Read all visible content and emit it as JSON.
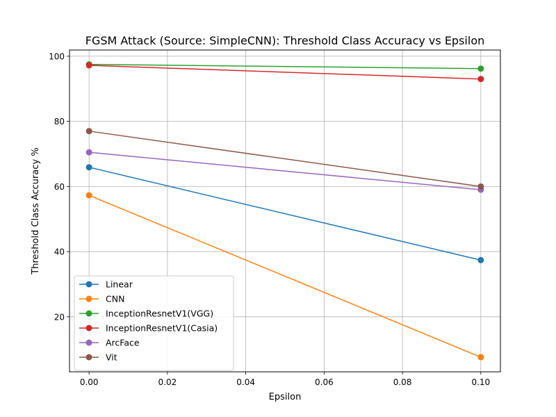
{
  "chart_data": {
    "type": "line",
    "title": "FGSM Attack (Source: SimpleCNN): Threshold Class Accuracy vs Epsilon",
    "xlabel": "Epsilon",
    "ylabel": "Threshold Class Accuracy %",
    "xlim": [
      -0.005,
      0.105
    ],
    "ylim": [
      3.1,
      101.9
    ],
    "x": [
      0.0,
      0.1
    ],
    "xticks": [
      0.0,
      0.02,
      0.04,
      0.06,
      0.08,
      0.1
    ],
    "xtick_labels": [
      "0.00",
      "0.02",
      "0.04",
      "0.06",
      "0.08",
      "0.10"
    ],
    "yticks": [
      20,
      40,
      60,
      80,
      100
    ],
    "ytick_labels": [
      "20",
      "40",
      "60",
      "80",
      "100"
    ],
    "grid": true,
    "legend_position": "lower-left",
    "series": [
      {
        "name": "Linear",
        "color": "#1f77b4",
        "values": [
          65.9,
          37.4
        ]
      },
      {
        "name": "CNN",
        "color": "#ff7f0e",
        "values": [
          57.3,
          7.6
        ]
      },
      {
        "name": "InceptionResnetV1(VGG)",
        "color": "#2ca02c",
        "values": [
          97.5,
          96.2
        ]
      },
      {
        "name": "InceptionResnetV1(Casia)",
        "color": "#d62728",
        "values": [
          97.2,
          93.0
        ]
      },
      {
        "name": "ArcFace",
        "color": "#9467bd",
        "values": [
          70.5,
          59.0
        ]
      },
      {
        "name": "Vit",
        "color": "#8c564b",
        "values": [
          77.0,
          60.0
        ]
      }
    ]
  }
}
